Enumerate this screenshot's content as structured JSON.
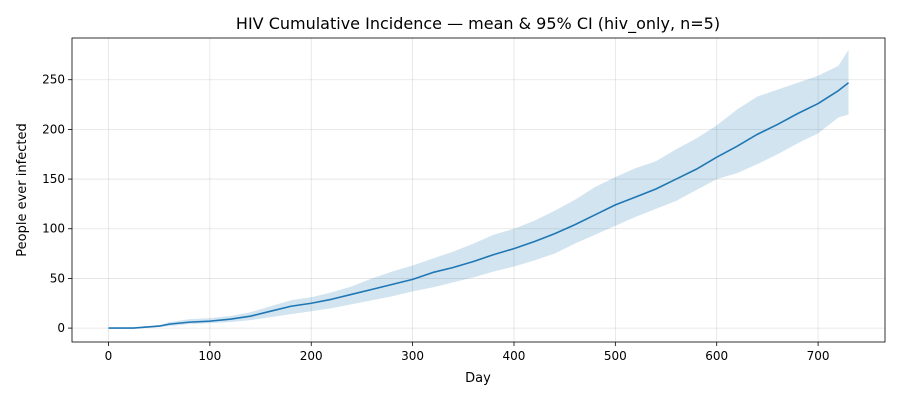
{
  "chart_data": {
    "type": "line",
    "title": "HIV Cumulative Incidence — mean & 95% CI (hiv_only, n=5)",
    "xlabel": "Day",
    "ylabel": "People ever infected",
    "xlim": [
      -36,
      766
    ],
    "ylim": [
      -14,
      292
    ],
    "xticks": [
      0,
      100,
      200,
      300,
      400,
      500,
      600,
      700
    ],
    "yticks": [
      0,
      50,
      100,
      150,
      200,
      250
    ],
    "grid": true,
    "legend": "none",
    "colors": {
      "line": "#1f77b4",
      "band": "#1f77b4"
    },
    "series": [
      {
        "x": [
          0,
          25,
          50,
          60,
          80,
          100,
          120,
          140,
          160,
          180,
          200,
          220,
          240,
          260,
          280,
          300,
          320,
          340,
          360,
          380,
          400,
          420,
          440,
          460,
          480,
          500,
          520,
          540,
          560,
          580,
          600,
          620,
          640,
          660,
          680,
          700,
          720,
          730
        ],
        "y": [
          0,
          0,
          2,
          4,
          6,
          7,
          9,
          12,
          17,
          22,
          25,
          29,
          34,
          39,
          44,
          49,
          56,
          61,
          67,
          74,
          80,
          87,
          95,
          104,
          114,
          124,
          132,
          140,
          150,
          160,
          172,
          183,
          195,
          205,
          216,
          226,
          239,
          247
        ],
        "lower": [
          0,
          0,
          1,
          2,
          4,
          5,
          6,
          8,
          11,
          14,
          17,
          20,
          24,
          28,
          32,
          37,
          41,
          46,
          51,
          57,
          62,
          68,
          75,
          85,
          94,
          103,
          112,
          120,
          128,
          139,
          150,
          156,
          165,
          175,
          186,
          196,
          212,
          215
        ],
        "upper": [
          0,
          1,
          3,
          6,
          9,
          10,
          12,
          16,
          22,
          28,
          31,
          36,
          42,
          50,
          57,
          63,
          70,
          77,
          85,
          94,
          100,
          108,
          118,
          129,
          142,
          152,
          161,
          168,
          180,
          191,
          204,
          220,
          233,
          240,
          247,
          254,
          264,
          280
        ]
      }
    ]
  }
}
